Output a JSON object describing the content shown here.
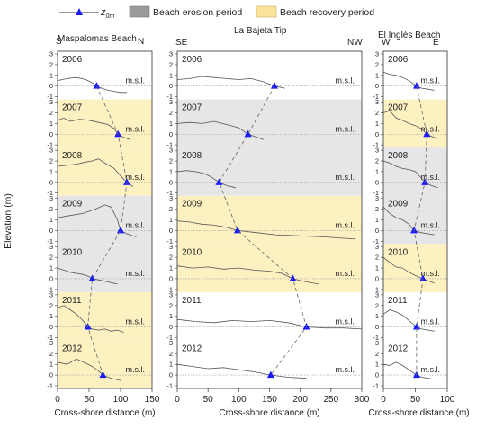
{
  "legend": {
    "marker_label": "z",
    "marker_subscript": "0m",
    "erosion_label": "Beach erosion period",
    "recovery_label": "Beach recovery period",
    "erosion_color": "#e6e6e6",
    "recovery_color": "#fdf1c2"
  },
  "y_axis_label": "Elevation (m)",
  "msl_label": "m.s.l.",
  "chart_data": [
    {
      "type": "line",
      "title": "Maspalomas Beach",
      "dir_left": "S",
      "dir_right": "N",
      "xlabel": "Cross-shore distance (m)",
      "xlim": [
        0,
        150
      ],
      "xticks": [
        0,
        50,
        100,
        150
      ],
      "ylim": [
        -1,
        3
      ],
      "yticks": [
        "3",
        "2",
        "1",
        "0",
        "-1"
      ],
      "series": [
        {
          "year": "2006",
          "period": "none",
          "z0m_x": 62,
          "x": [
            0,
            15,
            30,
            45,
            55,
            62,
            70,
            80,
            90,
            100,
            110
          ],
          "y": [
            0.5,
            0.7,
            0.8,
            0.6,
            0.3,
            0,
            -0.2,
            -0.4,
            -0.5,
            -0.6,
            -0.6
          ]
        },
        {
          "year": "2007",
          "period": "recovery",
          "z0m_x": 96,
          "x": [
            0,
            10,
            20,
            35,
            50,
            65,
            80,
            90,
            96,
            105,
            115
          ],
          "y": [
            1.3,
            1.5,
            1.2,
            1.4,
            1.3,
            1.1,
            0.9,
            0.5,
            0,
            -0.3,
            -0.5
          ]
        },
        {
          "year": "2008",
          "period": "recovery",
          "z0m_x": 110,
          "x": [
            0,
            15,
            30,
            45,
            55,
            65,
            75,
            90,
            100,
            110,
            120
          ],
          "y": [
            1.5,
            1.6,
            1.7,
            1.9,
            2.0,
            2.2,
            1.8,
            1.3,
            0.6,
            0,
            -0.4
          ]
        },
        {
          "year": "2009",
          "period": "erosion",
          "z0m_x": 100,
          "x": [
            0,
            20,
            40,
            60,
            75,
            85,
            95,
            100,
            110,
            125
          ],
          "y": [
            1.2,
            1.4,
            1.6,
            2.0,
            2.4,
            2.2,
            1.0,
            0,
            -0.3,
            -0.6
          ]
        },
        {
          "year": "2010",
          "period": "erosion",
          "z0m_x": 55,
          "x": [
            0,
            10,
            20,
            30,
            40,
            50,
            55,
            65,
            80,
            95
          ],
          "y": [
            1.0,
            0.8,
            0.6,
            0.5,
            0.4,
            0.2,
            0,
            -0.1,
            -0.3,
            -0.5
          ]
        },
        {
          "year": "2011",
          "period": "recovery",
          "z0m_x": 48,
          "x": [
            0,
            10,
            20,
            30,
            40,
            48,
            55,
            65,
            75,
            85,
            95,
            105
          ],
          "y": [
            1.8,
            2.0,
            1.6,
            1.2,
            0.6,
            0,
            -0.2,
            -0.3,
            -0.2,
            -0.4,
            -0.3,
            -0.5
          ]
        },
        {
          "year": "2012",
          "period": "recovery",
          "z0m_x": 72,
          "x": [
            0,
            15,
            30,
            45,
            55,
            65,
            72,
            85,
            100
          ],
          "y": [
            1.2,
            1.0,
            1.5,
            1.1,
            0.8,
            0.4,
            0,
            -0.3,
            -0.5
          ]
        }
      ]
    },
    {
      "type": "line",
      "title": "La Bajeta Tip",
      "dir_left": "SE",
      "dir_right": "NW",
      "xlabel": "Cross-shore distance (m)",
      "xlim": [
        0,
        300
      ],
      "xticks": [
        0,
        50,
        100,
        150,
        200,
        250,
        300
      ],
      "ylim": [
        -1,
        3
      ],
      "yticks": [
        "3",
        "2",
        "1",
        "0",
        "-1"
      ],
      "series": [
        {
          "year": "2006",
          "period": "none",
          "z0m_x": 158,
          "x": [
            0,
            20,
            40,
            60,
            80,
            100,
            120,
            140,
            158,
            175
          ],
          "y": [
            0.6,
            0.7,
            0.9,
            0.8,
            0.7,
            0.6,
            0.7,
            0.4,
            0,
            -0.2
          ]
        },
        {
          "year": "2007",
          "period": "erosion",
          "z0m_x": 115,
          "x": [
            0,
            20,
            40,
            60,
            80,
            100,
            115,
            130,
            140
          ],
          "y": [
            1.0,
            1.1,
            1.0,
            1.2,
            0.9,
            0.6,
            0,
            -0.3,
            -0.5
          ]
        },
        {
          "year": "2008",
          "period": "erosion",
          "z0m_x": 68,
          "x": [
            0,
            15,
            30,
            45,
            55,
            68,
            80,
            95
          ],
          "y": [
            1.0,
            1.1,
            1.0,
            0.8,
            0.5,
            0,
            -0.3,
            -0.5
          ]
        },
        {
          "year": "2009",
          "period": "recovery",
          "z0m_x": 98,
          "x": [
            0,
            20,
            40,
            60,
            80,
            98,
            130,
            160,
            200,
            240,
            290
          ],
          "y": [
            0.9,
            0.8,
            0.6,
            0.5,
            0.3,
            0,
            -0.2,
            -0.4,
            -0.5,
            -0.6,
            -0.8
          ]
        },
        {
          "year": "2010",
          "period": "recovery",
          "z0m_x": 188,
          "x": [
            0,
            25,
            50,
            75,
            100,
            125,
            150,
            170,
            188,
            210,
            230
          ],
          "y": [
            1.2,
            1.0,
            1.1,
            0.9,
            1.0,
            0.8,
            0.7,
            0.5,
            0,
            -0.3,
            -0.5
          ]
        },
        {
          "year": "2011",
          "period": "none",
          "z0m_x": 210,
          "x": [
            0,
            30,
            60,
            90,
            120,
            150,
            180,
            210,
            240,
            270,
            300
          ],
          "y": [
            0.7,
            0.5,
            0.4,
            0.6,
            0.5,
            0.6,
            0.4,
            0,
            -0.1,
            -0.1,
            -0.2
          ]
        },
        {
          "year": "2012",
          "period": "none",
          "z0m_x": 152,
          "x": [
            0,
            25,
            50,
            75,
            100,
            125,
            152,
            180,
            210
          ],
          "y": [
            1.0,
            0.8,
            0.6,
            0.7,
            0.5,
            0.3,
            0,
            -0.2,
            -0.3
          ]
        }
      ]
    },
    {
      "type": "line",
      "title": "El Inglés Beach",
      "dir_left": "W",
      "dir_right": "E",
      "xlabel": "Cross-shore distance (m)",
      "xlim": [
        0,
        100
      ],
      "xticks": [
        0,
        50,
        100
      ],
      "ylim": [
        -1,
        3
      ],
      "yticks": [
        "3",
        "2",
        "1",
        "0",
        "-1"
      ],
      "series": [
        {
          "year": "2006",
          "period": "none",
          "z0m_x": 52,
          "x": [
            0,
            10,
            20,
            30,
            40,
            52,
            60,
            70,
            80
          ],
          "y": [
            1.3,
            1.1,
            1.0,
            0.8,
            0.5,
            0,
            -0.2,
            -0.3,
            -0.4
          ]
        },
        {
          "year": "2007",
          "period": "recovery",
          "z0m_x": 68,
          "x": [
            0,
            10,
            20,
            30,
            40,
            50,
            60,
            68,
            75,
            85
          ],
          "y": [
            2.0,
            2.2,
            1.5,
            1.3,
            1.0,
            0.8,
            0.5,
            0,
            -0.2,
            -0.4
          ]
        },
        {
          "year": "2008",
          "period": "erosion",
          "z0m_x": 65,
          "x": [
            0,
            10,
            20,
            30,
            40,
            50,
            58,
            65,
            75,
            85
          ],
          "y": [
            2.0,
            1.8,
            1.5,
            1.3,
            1.2,
            1.0,
            0.5,
            0,
            -0.3,
            -0.5
          ]
        },
        {
          "year": "2009",
          "period": "erosion",
          "z0m_x": 48,
          "x": [
            0,
            10,
            20,
            30,
            40,
            48,
            60,
            70,
            80
          ],
          "y": [
            2.2,
            1.6,
            1.2,
            1.0,
            0.6,
            0,
            -0.2,
            -0.3,
            -0.4
          ]
        },
        {
          "year": "2010",
          "period": "recovery",
          "z0m_x": 62,
          "x": [
            0,
            10,
            20,
            30,
            40,
            50,
            62,
            70,
            80
          ],
          "y": [
            2.0,
            1.5,
            1.1,
            1.0,
            0.6,
            0.3,
            0,
            -0.2,
            -0.4
          ]
        },
        {
          "year": "2011",
          "period": "none",
          "z0m_x": 52,
          "x": [
            0,
            10,
            20,
            30,
            40,
            52,
            60,
            70,
            80
          ],
          "y": [
            1.2,
            1.6,
            1.4,
            1.1,
            0.6,
            0,
            -0.2,
            -0.3,
            -0.4
          ]
        },
        {
          "year": "2012",
          "period": "none",
          "z0m_x": 52,
          "x": [
            0,
            10,
            20,
            30,
            40,
            52,
            60,
            70,
            80
          ],
          "y": [
            1.0,
            0.9,
            1.2,
            0.9,
            0.5,
            0,
            -0.2,
            -0.3,
            -0.4
          ]
        }
      ]
    }
  ]
}
